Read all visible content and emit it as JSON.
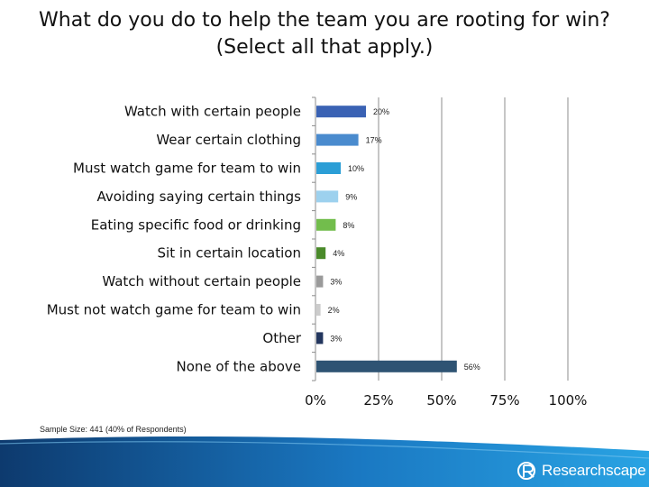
{
  "title": {
    "line1": "What do you do to help the team you are rooting for win?",
    "line2": "(Select all that apply.)"
  },
  "note": "Sample Size: 441 (40% of Respondents)",
  "brand": {
    "name": "Researchscape",
    "icon": "researchscape-logo-icon"
  },
  "colors": {
    "gridline": "#8c8c8c",
    "axis": "#8c8c8c",
    "footer_dark": "#0d3a6e",
    "footer_light": "#29a3e3"
  },
  "chart_data": {
    "type": "bar",
    "orientation": "horizontal",
    "categories": [
      "Watch with certain people",
      "Wear certain clothing",
      "Must watch game for team to win",
      "Avoiding saying certain things",
      "Eating specific food or drinking",
      "Sit in certain location",
      "Watch without certain people",
      "Must not watch game for team to win",
      "Other",
      "None of the above"
    ],
    "values": [
      20,
      17,
      10,
      9,
      8,
      4,
      3,
      2,
      3,
      56
    ],
    "data_labels": [
      "20%",
      "17%",
      "10%",
      "9%",
      "8%",
      "4%",
      "3%",
      "2%",
      "3%",
      "56%"
    ],
    "bar_colors": [
      "#3a62b4",
      "#4a8bce",
      "#2b9ed6",
      "#9dd1ee",
      "#72bd4c",
      "#4a8a2a",
      "#9a9a9a",
      "#cccccc",
      "#23365e",
      "#2e5373"
    ],
    "xlim": [
      0,
      100
    ],
    "x_ticks": [
      0,
      25,
      50,
      75,
      100
    ],
    "x_tick_labels": [
      "0%",
      "25%",
      "50%",
      "75%",
      "100%"
    ],
    "grid": true
  }
}
